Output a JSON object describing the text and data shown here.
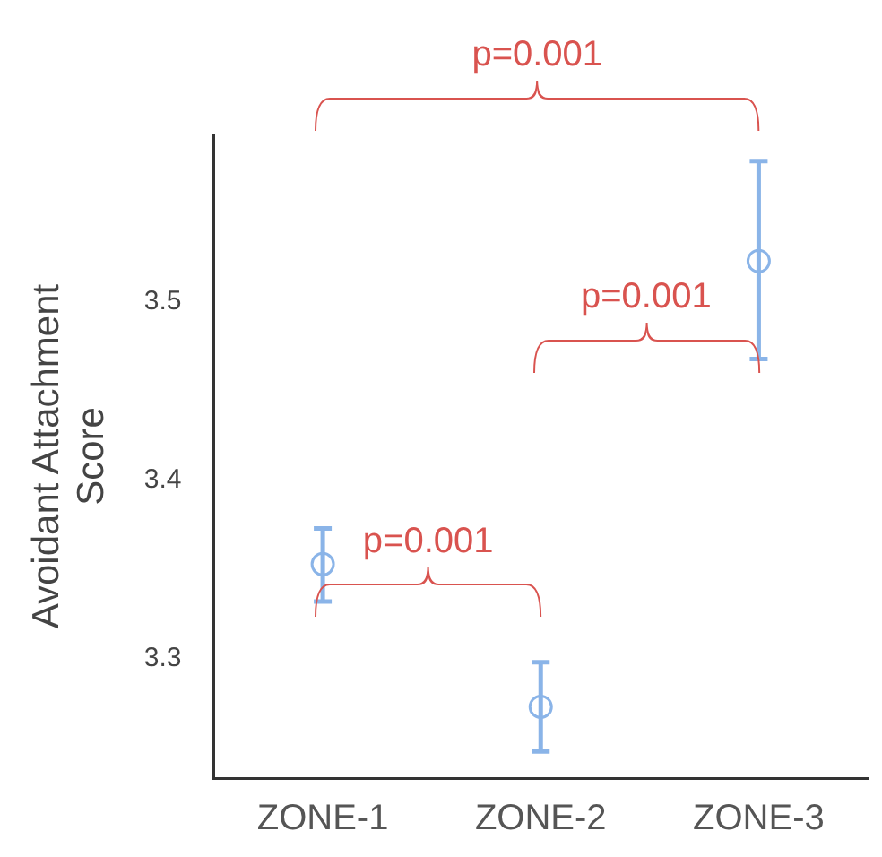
{
  "chart_data": {
    "type": "scatter",
    "ylabel": "Avoidant Attachment Score",
    "categories": [
      "ZONE-1",
      "ZONE-2",
      "ZONE-3"
    ],
    "values": [
      3.353,
      3.273,
      3.523
    ],
    "errors": [
      [
        3.332,
        3.373
      ],
      [
        3.248,
        3.298
      ],
      [
        3.468,
        3.579
      ]
    ],
    "color": "#8ab4e8",
    "marker": "circle",
    "ylim": [
      3.233,
      3.594
    ],
    "yticks": [
      3.3,
      3.4,
      3.5
    ],
    "grid": false,
    "legend": false,
    "annotations": [
      "p=0.001",
      "p=0.001",
      "p=0.001"
    ]
  }
}
